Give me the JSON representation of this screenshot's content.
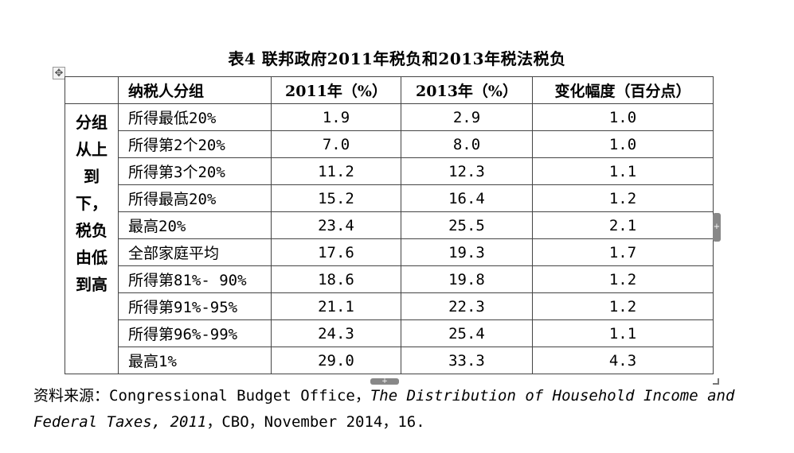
{
  "title": "表4 联邦政府2011年税负和2013年税法税负",
  "table": {
    "headers": [
      "纳税人分组",
      "2011年（%）",
      "2013年（%）",
      "变化幅度（百分点）"
    ],
    "row_group_label": [
      "分组",
      "从上",
      "到",
      "下，",
      "税负",
      "由低",
      "到高"
    ],
    "rows": [
      {
        "group": "所得最低20%",
        "y2011": "1.9",
        "y2013": "2.9",
        "change": "1.0"
      },
      {
        "group": "所得第2个20%",
        "y2011": "7.0",
        "y2013": "8.0",
        "change": "1.0"
      },
      {
        "group": "所得第3个20%",
        "y2011": "11.2",
        "y2013": "12.3",
        "change": "1.1"
      },
      {
        "group": "所得最高20%",
        "y2011": "15.2",
        "y2013": "16.4",
        "change": "1.2"
      },
      {
        "group": "最高20%",
        "y2011": "23.4",
        "y2013": "25.5",
        "change": "2.1"
      },
      {
        "group": "全部家庭平均",
        "y2011": "17.6",
        "y2013": "19.3",
        "change": "1.7"
      },
      {
        "group": "所得第81%- 90%",
        "y2011": "18.6",
        "y2013": "19.8",
        "change": "1.2"
      },
      {
        "group": "所得第91%-95%",
        "y2011": "21.1",
        "y2013": "22.3",
        "change": "1.2"
      },
      {
        "group": "所得第96%-99%",
        "y2011": "24.3",
        "y2013": "25.4",
        "change": "1.1"
      },
      {
        "group": "最高1%",
        "y2011": "29.0",
        "y2013": "33.3",
        "change": "4.3"
      }
    ]
  },
  "source": {
    "prefix": "资料来源：Congressional Budget Office，",
    "italic_title": "The Distribution of Household Income and Federal Taxes, 2011",
    "suffix": "，CBO，November 2014，16."
  },
  "handles": {
    "move_icon": "✥",
    "resize_icon": "+"
  }
}
